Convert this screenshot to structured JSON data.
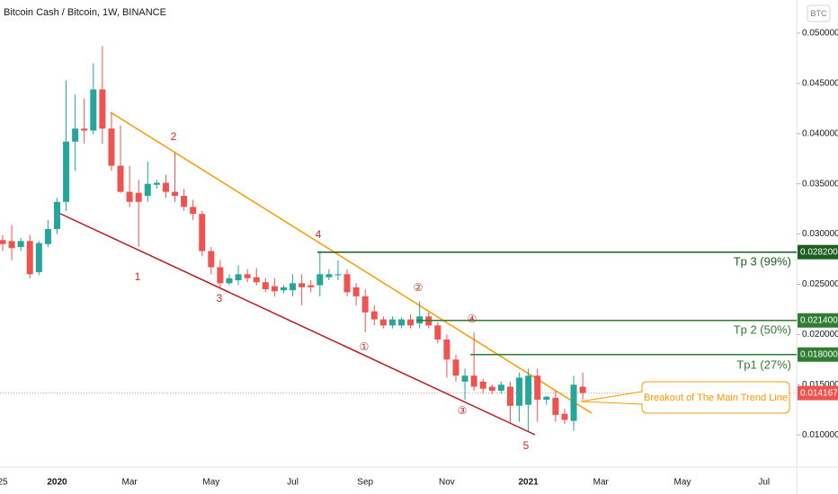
{
  "chart_data": {
    "type": "candlestick",
    "title": "Bitcoin Cash / Bitcoin, 1W, BINANCE",
    "y_axis_unit": "BTC",
    "categories": [
      "25",
      null,
      null,
      null,
      null,
      null,
      "2020",
      null,
      null,
      null,
      null,
      null,
      null,
      null,
      "Mar",
      null,
      null,
      null,
      null,
      null,
      null,
      null,
      null,
      "May",
      null,
      null,
      null,
      null,
      null,
      null,
      null,
      null,
      "Jul",
      null,
      null,
      null,
      null,
      null,
      null,
      null,
      "Sep",
      null,
      null,
      null,
      null,
      null,
      null,
      null,
      null,
      "Nov",
      null,
      null,
      null,
      null,
      null,
      null,
      null,
      null,
      "2021",
      null,
      null,
      null,
      null,
      null,
      null,
      null,
      "Mar",
      null,
      null,
      null,
      null,
      null,
      null,
      null,
      null,
      "May",
      null,
      null,
      null,
      null,
      null,
      null,
      null,
      null,
      "Jul",
      null,
      null,
      null
    ],
    "open": [
      0.0294,
      0.0293,
      0.0287,
      0.0293,
      0.0262,
      0.029,
      0.0305,
      0.0332,
      0.0392,
      0.0405,
      0.0403,
      0.0444,
      0.0405,
      0.0368,
      0.0342,
      0.0341,
      0.0338,
      0.0349,
      0.0351,
      0.0342,
      0.0338,
      0.0327,
      0.032,
      0.0283,
      0.0267,
      0.0251,
      0.0254,
      0.026,
      0.0257,
      0.0252,
      0.0248,
      0.0244,
      0.0244,
      0.0251,
      0.0249,
      0.0249,
      0.0257,
      0.0259,
      0.026,
      0.0247,
      0.0238,
      0.0223,
      0.0215,
      0.0209,
      0.0209,
      0.0215,
      0.0211,
      0.0218,
      0.0209,
      0.0195,
      0.0175,
      0.0153,
      0.0159,
      0.0153,
      0.0148,
      0.0144,
      0.0148,
      0.0129,
      0.013,
      0.0159,
      0.0135,
      0.0137,
      0.0121,
      0.0114,
      0.0148,
      null,
      null,
      null,
      null,
      null,
      null,
      null,
      null,
      null,
      null,
      null,
      null,
      null,
      null,
      null,
      null,
      null,
      null,
      null,
      null,
      null,
      null,
      null
    ],
    "high": [
      0.0299,
      0.0309,
      0.0296,
      0.0299,
      0.0293,
      0.0314,
      0.0336,
      0.0453,
      0.0439,
      0.0435,
      0.047,
      0.0487,
      0.0421,
      0.0408,
      0.0368,
      0.0354,
      0.0372,
      0.0354,
      0.0359,
      0.0381,
      0.0345,
      0.0334,
      0.0323,
      0.0287,
      0.0274,
      0.026,
      0.0269,
      0.0265,
      0.0266,
      0.0256,
      0.0256,
      0.0249,
      0.026,
      0.026,
      0.0254,
      0.0283,
      0.0265,
      0.0274,
      0.0265,
      0.0251,
      0.0245,
      0.0229,
      0.0218,
      0.0218,
      0.0217,
      0.022,
      0.0233,
      0.0222,
      0.0212,
      0.02,
      0.018,
      0.0166,
      0.0202,
      0.0156,
      0.015,
      0.0153,
      0.0153,
      0.0162,
      0.0166,
      0.0166,
      0.0139,
      0.0144,
      0.0126,
      0.0159,
      0.0162,
      null,
      null,
      null,
      null,
      null,
      null,
      null,
      null,
      null,
      null,
      null,
      null,
      null,
      null,
      null,
      null,
      null,
      null,
      null,
      null,
      null,
      null,
      null
    ],
    "low": [
      0.0283,
      0.0274,
      0.0283,
      0.0256,
      0.0259,
      0.0287,
      0.03,
      0.0323,
      0.0363,
      0.039,
      0.0399,
      0.039,
      0.0363,
      0.0341,
      0.0327,
      0.0287,
      0.0332,
      0.0345,
      0.0336,
      0.0332,
      0.0323,
      0.0314,
      0.0278,
      0.026,
      0.0247,
      0.0249,
      0.0249,
      0.0252,
      0.0249,
      0.0242,
      0.0238,
      0.0241,
      0.0238,
      0.0229,
      0.0242,
      0.0238,
      0.0254,
      0.0254,
      0.0238,
      0.0229,
      0.0202,
      0.0209,
      0.0206,
      0.0206,
      0.0206,
      0.0206,
      0.0206,
      0.0206,
      0.0191,
      0.0157,
      0.0153,
      0.0135,
      0.0144,
      0.0141,
      0.0141,
      0.0141,
      0.0113,
      0.0113,
      0.0104,
      0.0113,
      0.013,
      0.0113,
      0.0111,
      0.0104,
      0.0135,
      null,
      null,
      null,
      null,
      null,
      null,
      null,
      null,
      null,
      null,
      null,
      null,
      null,
      null,
      null,
      null,
      null,
      null,
      null,
      null,
      null,
      null,
      null
    ],
    "close": [
      0.029,
      0.0286,
      0.0293,
      0.026,
      0.0291,
      0.0305,
      0.0332,
      0.0392,
      0.0405,
      0.0403,
      0.0444,
      0.0405,
      0.0368,
      0.0342,
      0.0332,
      0.0332,
      0.035,
      0.0351,
      0.0342,
      0.0338,
      0.0327,
      0.032,
      0.0283,
      0.0267,
      0.0251,
      0.0256,
      0.026,
      0.0256,
      0.0252,
      0.0245,
      0.0243,
      0.0247,
      0.0251,
      0.0247,
      0.0247,
      0.026,
      0.026,
      0.026,
      0.0242,
      0.0238,
      0.0222,
      0.0215,
      0.0209,
      0.0215,
      0.0215,
      0.0209,
      0.0218,
      0.0209,
      0.0195,
      0.0175,
      0.0159,
      0.0159,
      0.0148,
      0.0146,
      0.0144,
      0.015,
      0.0129,
      0.0157,
      0.0159,
      0.0135,
      0.0138,
      0.012,
      0.0115,
      0.015,
      0.014167,
      null,
      null,
      null,
      null,
      null,
      null,
      null,
      null,
      null,
      null,
      null,
      null,
      null,
      null,
      null,
      null,
      null,
      null,
      null,
      null,
      null,
      null,
      null
    ],
    "up_color": "#26a69a",
    "down_color": "#ef5350",
    "ylim": [
      0.0068,
      0.0533
    ],
    "yticks": [
      {
        "value": 0.01,
        "label": "0.010000"
      },
      {
        "value": 0.015,
        "label": "0.015000"
      },
      {
        "value": 0.02,
        "label": "0.020000"
      },
      {
        "value": 0.025,
        "label": "0.025000"
      },
      {
        "value": 0.03,
        "label": "0.030000"
      },
      {
        "value": 0.035,
        "label": "0.035000"
      },
      {
        "value": 0.04,
        "label": "0.040000"
      },
      {
        "value": 0.045,
        "label": "0.045000"
      },
      {
        "value": 0.05,
        "label": "0.050000"
      }
    ],
    "current_price": {
      "value": 0.014167,
      "label": "0.014167"
    },
    "levels": [
      {
        "name": "Tp 3 (99%)",
        "value": 0.0282,
        "label": "0.028200",
        "color": "#1b5e20"
      },
      {
        "name": "Tp 2 (50%)",
        "value": 0.0214,
        "label": "0.021400",
        "color": "#2e7d32"
      },
      {
        "name": "Tp1 (27%)",
        "value": 0.018,
        "label": "0.018000",
        "color": "#2e7d32"
      }
    ],
    "annotations": [
      "1",
      "2",
      "3",
      "4",
      "5",
      "①",
      "②",
      "③",
      "④"
    ],
    "callout": "Breakout of The Main Trend Line"
  }
}
